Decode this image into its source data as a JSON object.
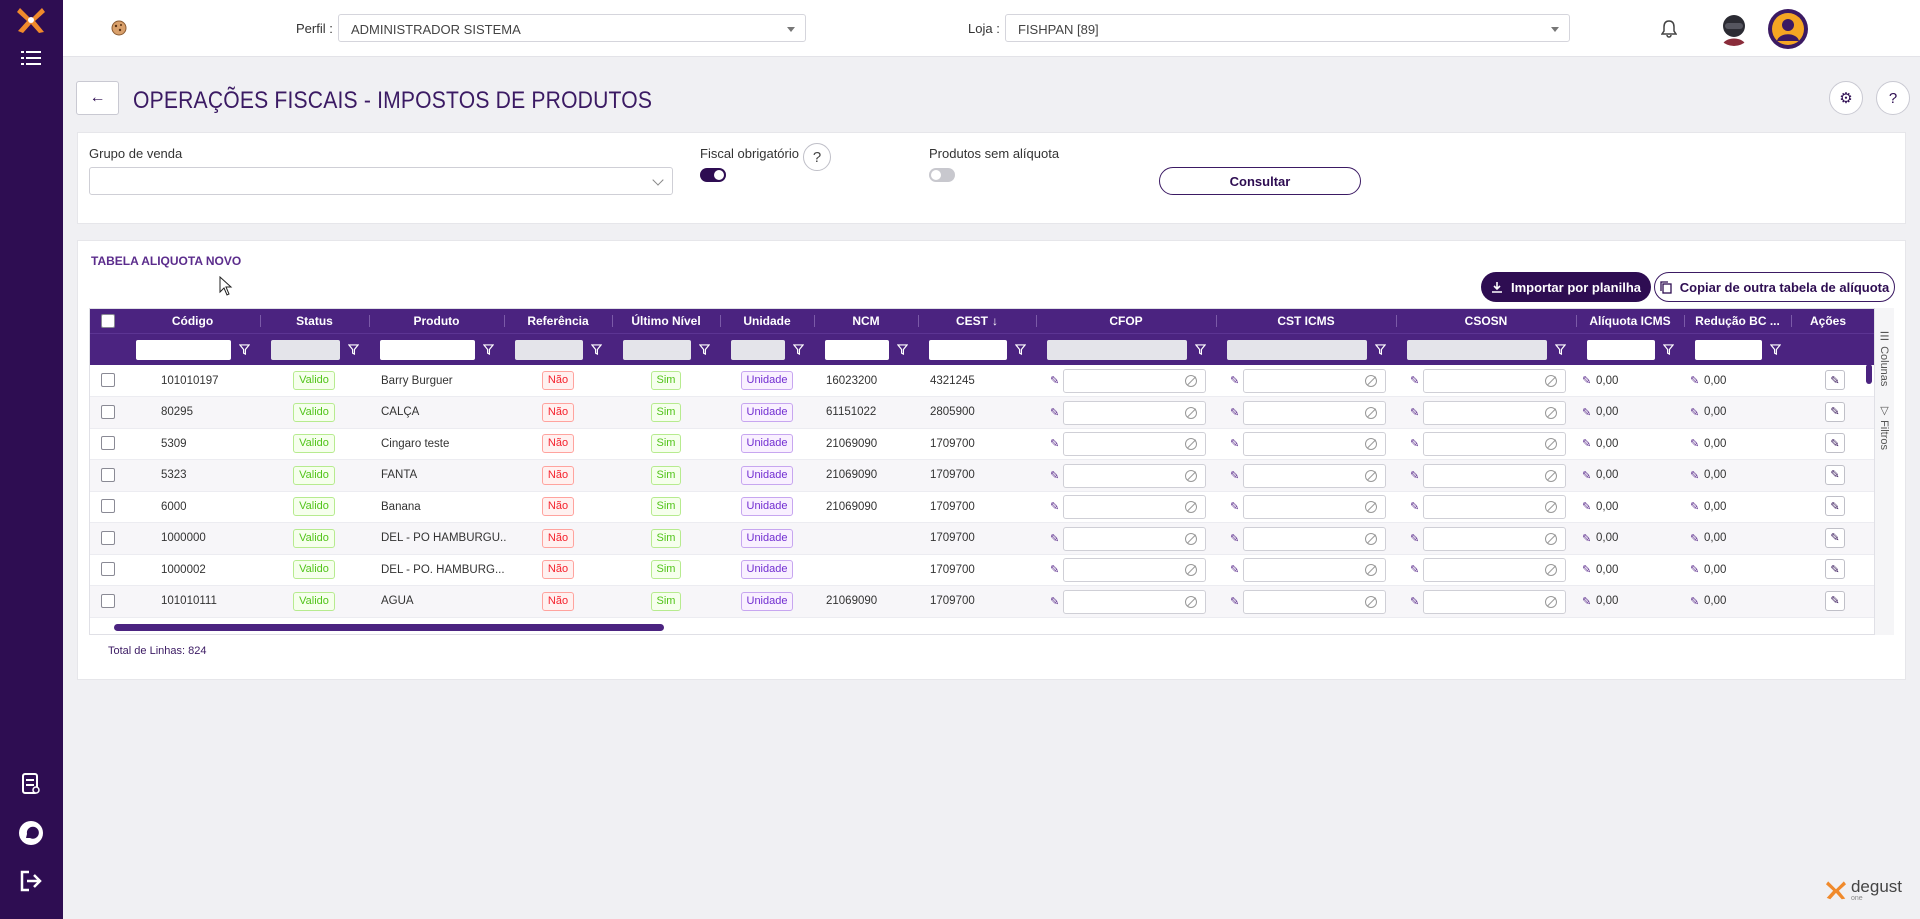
{
  "topbar": {
    "perfil_label": "Perfil :",
    "perfil_value": "ADMINISTRADOR SISTEMA",
    "loja_label": "Loja :",
    "loja_value": "FISHPAN [89]"
  },
  "page": {
    "title": "OPERAÇÕES FISCAIS - IMPOSTOS DE PRODUTOS"
  },
  "filters": {
    "grupo_label": "Grupo de venda",
    "grupo_value": "",
    "fiscal_label": "Fiscal obrigatório",
    "fiscal_on": true,
    "help_symbol": "?",
    "sem_aliquota_label": "Produtos sem alíquota",
    "sem_aliquota_on": false,
    "consultar_label": "Consultar"
  },
  "table": {
    "section_title": "TABELA ALIQUOTA NOVO",
    "import_label": "Importar por planilha",
    "copy_label": "Copiar de outra tabela de alíquota",
    "columns": [
      "Código",
      "Status",
      "Produto",
      "Referência",
      "Último Nível",
      "Unidade",
      "NCM",
      "CEST",
      "CFOP",
      "CST ICMS",
      "CSOSN",
      "Alíquota ICMS",
      "Redução BC ...",
      "Ações"
    ],
    "sort_indicator": "↓",
    "rows": [
      {
        "codigo": "101010197",
        "status": "Valido",
        "produto": "Barry Burguer",
        "referencia": "Não",
        "ultimo": "Sim",
        "unidade": "Unidade",
        "ncm": "16023200",
        "cest": "4321245",
        "aliquota": "0,00",
        "reducao": "0,00"
      },
      {
        "codigo": "80295",
        "status": "Valido",
        "produto": "CALÇA",
        "referencia": "Não",
        "ultimo": "Sim",
        "unidade": "Unidade",
        "ncm": "61151022",
        "cest": "2805900",
        "aliquota": "0,00",
        "reducao": "0,00"
      },
      {
        "codigo": "5309",
        "status": "Valido",
        "produto": "Cingaro teste",
        "referencia": "Não",
        "ultimo": "Sim",
        "unidade": "Unidade",
        "ncm": "21069090",
        "cest": "1709700",
        "aliquota": "0,00",
        "reducao": "0,00"
      },
      {
        "codigo": "5323",
        "status": "Valido",
        "produto": "FANTA",
        "referencia": "Não",
        "ultimo": "Sim",
        "unidade": "Unidade",
        "ncm": "21069090",
        "cest": "1709700",
        "aliquota": "0,00",
        "reducao": "0,00"
      },
      {
        "codigo": "6000",
        "status": "Valido",
        "produto": "Banana",
        "referencia": "Não",
        "ultimo": "Sim",
        "unidade": "Unidade",
        "ncm": "21069090",
        "cest": "1709700",
        "aliquota": "0,00",
        "reducao": "0,00"
      },
      {
        "codigo": "1000000",
        "status": "Valido",
        "produto": "DEL - PO HAMBURGU...",
        "referencia": "Não",
        "ultimo": "Sim",
        "unidade": "Unidade",
        "ncm": "",
        "cest": "1709700",
        "aliquota": "0,00",
        "reducao": "0,00"
      },
      {
        "codigo": "1000002",
        "status": "Valido",
        "produto": "DEL - PO. HAMBURG...",
        "referencia": "Não",
        "ultimo": "Sim",
        "unidade": "Unidade",
        "ncm": "",
        "cest": "1709700",
        "aliquota": "0,00",
        "reducao": "0,00"
      },
      {
        "codigo": "101010111",
        "status": "Valido",
        "produto": "AGUA",
        "referencia": "Não",
        "ultimo": "Sim",
        "unidade": "Unidade",
        "ncm": "21069090",
        "cest": "1709700",
        "aliquota": "0,00",
        "reducao": "0,00"
      }
    ],
    "side_tabs": [
      "Colunas",
      "Filtros"
    ],
    "total_label": "Total de Linhas: 824"
  },
  "brand": {
    "name": "degust",
    "sub": "one"
  },
  "colors": {
    "primary": "#2e0d52",
    "header": "#4b2380",
    "accent": "#5b2c8c"
  },
  "icons": [
    "app-logo-icon",
    "menu-list-icon",
    "cookie-icon",
    "bell-icon",
    "avatar-icon",
    "user-icon",
    "back-arrow-icon",
    "gear-icon",
    "help-icon",
    "download-icon",
    "copy-icon",
    "filter-icon",
    "pencil-icon",
    "clear-icon",
    "receipt-icon",
    "whatsapp-icon",
    "logout-icon"
  ]
}
